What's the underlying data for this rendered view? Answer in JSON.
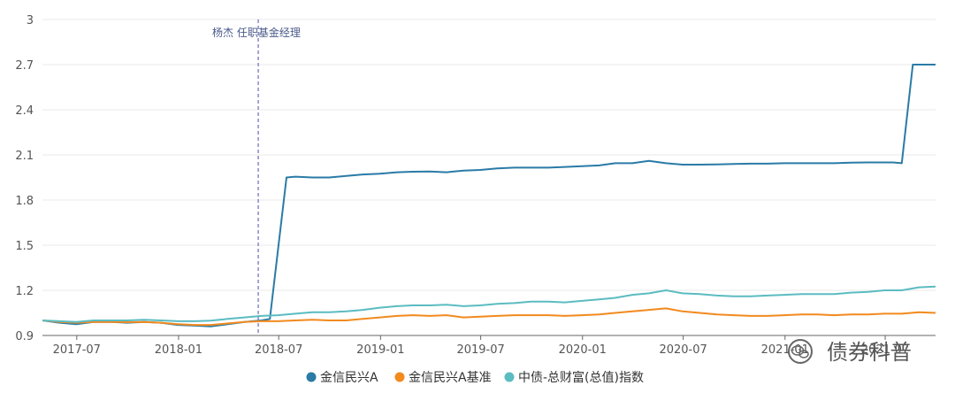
{
  "chart_data": {
    "type": "line",
    "ylim": [
      0.9,
      3.0
    ],
    "y_ticks": [
      "0.9",
      "1.2",
      "1.5",
      "1.8",
      "2.1",
      "2.4",
      "2.7",
      "3"
    ],
    "x_ticks": [
      "2017-07",
      "2018-01",
      "2018-07",
      "2019-01",
      "2019-07",
      "2020-01",
      "2020-07",
      "2021-01",
      "2021-07"
    ],
    "x_range": [
      "2017-04-30",
      "2021-09-30"
    ],
    "grid": true,
    "legend_position": "bottom",
    "annotation": {
      "date": "2018-05-25",
      "label": "杨杰 任职基金经理"
    },
    "series": [
      {
        "name": "金信民兴A",
        "color": "#2a7ba6",
        "points": [
          [
            "2017-04-30",
            1.0
          ],
          [
            "2017-05-31",
            0.985
          ],
          [
            "2017-06-30",
            0.975
          ],
          [
            "2017-07-31",
            0.99
          ],
          [
            "2017-08-31",
            0.99
          ],
          [
            "2017-09-30",
            0.985
          ],
          [
            "2017-10-31",
            0.99
          ],
          [
            "2017-11-30",
            0.985
          ],
          [
            "2017-12-31",
            0.97
          ],
          [
            "2018-01-31",
            0.965
          ],
          [
            "2018-02-28",
            0.96
          ],
          [
            "2018-03-31",
            0.975
          ],
          [
            "2018-04-30",
            0.99
          ],
          [
            "2018-05-31",
            1.0
          ],
          [
            "2018-06-15",
            1.01
          ],
          [
            "2018-07-15",
            1.95
          ],
          [
            "2018-07-31",
            1.955
          ],
          [
            "2018-08-31",
            1.95
          ],
          [
            "2018-09-30",
            1.95
          ],
          [
            "2018-10-31",
            1.96
          ],
          [
            "2018-11-30",
            1.97
          ],
          [
            "2018-12-31",
            1.975
          ],
          [
            "2019-01-31",
            1.985
          ],
          [
            "2019-02-28",
            1.988
          ],
          [
            "2019-03-31",
            1.99
          ],
          [
            "2019-04-30",
            1.985
          ],
          [
            "2019-05-31",
            1.995
          ],
          [
            "2019-06-30",
            2.0
          ],
          [
            "2019-07-31",
            2.01
          ],
          [
            "2019-08-31",
            2.015
          ],
          [
            "2019-09-30",
            2.015
          ],
          [
            "2019-10-31",
            2.015
          ],
          [
            "2019-11-30",
            2.02
          ],
          [
            "2019-12-31",
            2.025
          ],
          [
            "2020-01-31",
            2.03
          ],
          [
            "2020-02-29",
            2.045
          ],
          [
            "2020-03-31",
            2.045
          ],
          [
            "2020-04-30",
            2.06
          ],
          [
            "2020-05-31",
            2.045
          ],
          [
            "2020-06-30",
            2.035
          ],
          [
            "2020-07-31",
            2.035
          ],
          [
            "2020-08-31",
            2.037
          ],
          [
            "2020-09-30",
            2.04
          ],
          [
            "2020-10-31",
            2.042
          ],
          [
            "2020-11-30",
            2.042
          ],
          [
            "2020-12-31",
            2.045
          ],
          [
            "2021-01-31",
            2.045
          ],
          [
            "2021-02-28",
            2.045
          ],
          [
            "2021-03-31",
            2.045
          ],
          [
            "2021-04-30",
            2.048
          ],
          [
            "2021-05-31",
            2.05
          ],
          [
            "2021-06-30",
            2.05
          ],
          [
            "2021-07-15",
            2.05
          ],
          [
            "2021-07-31",
            2.045
          ],
          [
            "2021-08-20",
            2.7
          ],
          [
            "2021-09-30",
            2.7
          ]
        ]
      },
      {
        "name": "金信民兴A基准",
        "color": "#f28a1e",
        "points": [
          [
            "2017-04-30",
            1.0
          ],
          [
            "2017-05-31",
            0.99
          ],
          [
            "2017-06-30",
            0.985
          ],
          [
            "2017-07-31",
            0.99
          ],
          [
            "2017-08-31",
            0.99
          ],
          [
            "2017-09-30",
            0.988
          ],
          [
            "2017-10-31",
            0.99
          ],
          [
            "2017-11-30",
            0.985
          ],
          [
            "2017-12-31",
            0.975
          ],
          [
            "2018-01-31",
            0.97
          ],
          [
            "2018-02-28",
            0.97
          ],
          [
            "2018-03-31",
            0.98
          ],
          [
            "2018-04-30",
            0.99
          ],
          [
            "2018-05-31",
            0.995
          ],
          [
            "2018-06-30",
            0.995
          ],
          [
            "2018-07-31",
            1.0
          ],
          [
            "2018-08-31",
            1.005
          ],
          [
            "2018-09-30",
            1.0
          ],
          [
            "2018-10-31",
            1.0
          ],
          [
            "2018-11-30",
            1.01
          ],
          [
            "2018-12-31",
            1.02
          ],
          [
            "2019-01-31",
            1.03
          ],
          [
            "2019-02-28",
            1.035
          ],
          [
            "2019-03-31",
            1.03
          ],
          [
            "2019-04-30",
            1.035
          ],
          [
            "2019-05-31",
            1.02
          ],
          [
            "2019-06-30",
            1.025
          ],
          [
            "2019-07-31",
            1.03
          ],
          [
            "2019-08-31",
            1.035
          ],
          [
            "2019-09-30",
            1.035
          ],
          [
            "2019-10-31",
            1.035
          ],
          [
            "2019-11-30",
            1.03
          ],
          [
            "2019-12-31",
            1.035
          ],
          [
            "2020-01-31",
            1.04
          ],
          [
            "2020-02-29",
            1.05
          ],
          [
            "2020-03-31",
            1.06
          ],
          [
            "2020-04-30",
            1.07
          ],
          [
            "2020-05-31",
            1.08
          ],
          [
            "2020-06-30",
            1.06
          ],
          [
            "2020-07-31",
            1.05
          ],
          [
            "2020-08-31",
            1.04
          ],
          [
            "2020-09-30",
            1.035
          ],
          [
            "2020-10-31",
            1.03
          ],
          [
            "2020-11-30",
            1.03
          ],
          [
            "2020-12-31",
            1.035
          ],
          [
            "2021-01-31",
            1.04
          ],
          [
            "2021-02-28",
            1.04
          ],
          [
            "2021-03-31",
            1.035
          ],
          [
            "2021-04-30",
            1.04
          ],
          [
            "2021-05-31",
            1.04
          ],
          [
            "2021-06-30",
            1.045
          ],
          [
            "2021-07-31",
            1.045
          ],
          [
            "2021-08-31",
            1.055
          ],
          [
            "2021-09-30",
            1.05
          ]
        ]
      },
      {
        "name": "中债-总财富(总值)指数",
        "color": "#5bbcc1",
        "points": [
          [
            "2017-04-30",
            1.0
          ],
          [
            "2017-05-31",
            0.995
          ],
          [
            "2017-06-30",
            0.99
          ],
          [
            "2017-07-31",
            1.0
          ],
          [
            "2017-08-31",
            1.0
          ],
          [
            "2017-09-30",
            1.0
          ],
          [
            "2017-10-31",
            1.005
          ],
          [
            "2017-11-30",
            1.0
          ],
          [
            "2017-12-31",
            0.995
          ],
          [
            "2018-01-31",
            0.995
          ],
          [
            "2018-02-28",
            0.998
          ],
          [
            "2018-03-31",
            1.01
          ],
          [
            "2018-04-30",
            1.02
          ],
          [
            "2018-05-31",
            1.03
          ],
          [
            "2018-06-30",
            1.035
          ],
          [
            "2018-07-31",
            1.045
          ],
          [
            "2018-08-31",
            1.055
          ],
          [
            "2018-09-30",
            1.055
          ],
          [
            "2018-10-31",
            1.06
          ],
          [
            "2018-11-30",
            1.07
          ],
          [
            "2018-12-31",
            1.085
          ],
          [
            "2019-01-31",
            1.095
          ],
          [
            "2019-02-28",
            1.1
          ],
          [
            "2019-03-31",
            1.1
          ],
          [
            "2019-04-30",
            1.105
          ],
          [
            "2019-05-31",
            1.095
          ],
          [
            "2019-06-30",
            1.1
          ],
          [
            "2019-07-31",
            1.11
          ],
          [
            "2019-08-31",
            1.115
          ],
          [
            "2019-09-30",
            1.125
          ],
          [
            "2019-10-31",
            1.125
          ],
          [
            "2019-11-30",
            1.12
          ],
          [
            "2019-12-31",
            1.13
          ],
          [
            "2020-01-31",
            1.14
          ],
          [
            "2020-02-29",
            1.15
          ],
          [
            "2020-03-31",
            1.17
          ],
          [
            "2020-04-30",
            1.18
          ],
          [
            "2020-05-31",
            1.2
          ],
          [
            "2020-06-30",
            1.18
          ],
          [
            "2020-07-31",
            1.175
          ],
          [
            "2020-08-31",
            1.165
          ],
          [
            "2020-09-30",
            1.16
          ],
          [
            "2020-10-31",
            1.16
          ],
          [
            "2020-11-30",
            1.165
          ],
          [
            "2020-12-31",
            1.17
          ],
          [
            "2021-01-31",
            1.175
          ],
          [
            "2021-02-28",
            1.175
          ],
          [
            "2021-03-31",
            1.175
          ],
          [
            "2021-04-30",
            1.185
          ],
          [
            "2021-05-31",
            1.19
          ],
          [
            "2021-06-30",
            1.2
          ],
          [
            "2021-07-31",
            1.2
          ],
          [
            "2021-08-31",
            1.22
          ],
          [
            "2021-09-30",
            1.225
          ]
        ]
      }
    ]
  },
  "watermark": {
    "text": "债券科普",
    "icon": "wechat-icon"
  }
}
